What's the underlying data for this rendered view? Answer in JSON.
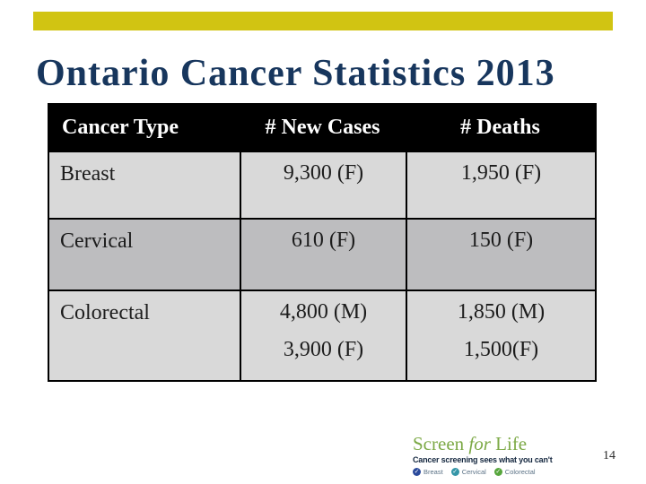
{
  "slide": {
    "title": "Ontario Cancer Statistics 2013",
    "page_number": "14"
  },
  "table": {
    "headers": [
      "Cancer Type",
      "# New Cases",
      "# Deaths"
    ],
    "rows": [
      {
        "type": "Breast",
        "new_cases": [
          "9,300 (F)"
        ],
        "deaths": [
          "1,950 (F)"
        ]
      },
      {
        "type": "Cervical",
        "new_cases": [
          "610 (F)"
        ],
        "deaths": [
          "150 (F)"
        ]
      },
      {
        "type": "Colorectal",
        "new_cases": [
          "4,800 (M)",
          "3,900 (F)"
        ],
        "deaths": [
          "1,850 (M)",
          "1,500(F)"
        ]
      }
    ]
  },
  "logo": {
    "brand_screen": "Screen",
    "brand_for": "for",
    "brand_life": "Life",
    "tagline": "Cancer screening sees what you can't",
    "check_glyph": "✓",
    "badges": [
      {
        "label": "Breast",
        "color": "#2b4a9b"
      },
      {
        "label": "Cervical",
        "color": "#3596a8"
      },
      {
        "label": "Colorectal",
        "color": "#57a63d"
      }
    ]
  },
  "colors": {
    "accent_bar": "#d1c412",
    "title_text": "#17365d",
    "header_bg": "#000000",
    "header_text": "#ffffff",
    "row_light": "#d9d9d9",
    "row_dark": "#bdbdbf",
    "logo_green": "#7ca946"
  }
}
